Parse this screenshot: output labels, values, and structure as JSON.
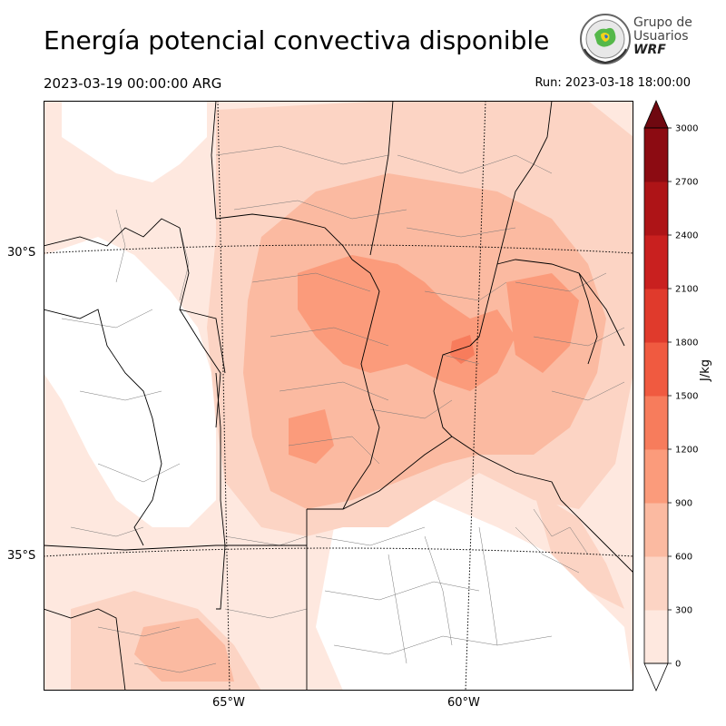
{
  "header": {
    "title": "Energía potencial convectiva disponible",
    "valid_time": "2023-03-19 00:00:00 ARG",
    "run_time": "Run: 2023-03-18 18:00:00"
  },
  "logo": {
    "line1": "Grupo de",
    "line2": "Usuarios",
    "line3": "WRF"
  },
  "map": {
    "lat_labels": [
      "30°S",
      "35°S"
    ],
    "lon_labels": [
      "65°W",
      "60°W"
    ]
  },
  "colorbar": {
    "unit": "J/kg",
    "levels": [
      0,
      300,
      600,
      900,
      1200,
      1500,
      1800,
      2100,
      2400,
      2700,
      3000
    ],
    "level_labels": [
      "0",
      "300",
      "600",
      "900",
      "1200",
      "1500",
      "1800",
      "2100",
      "2400",
      "2700",
      "3000"
    ],
    "colors": [
      "#fee8df",
      "#fcd4c4",
      "#fbbaa1",
      "#fb9b7b",
      "#f77c5c",
      "#f05a40",
      "#e03a2c",
      "#c9201f",
      "#ae1417",
      "#8c0b12",
      "#6f0810"
    ],
    "extend": "both"
  },
  "colors": {
    "border": "#000000",
    "department_lines": "#777777",
    "frame": "#000000"
  }
}
